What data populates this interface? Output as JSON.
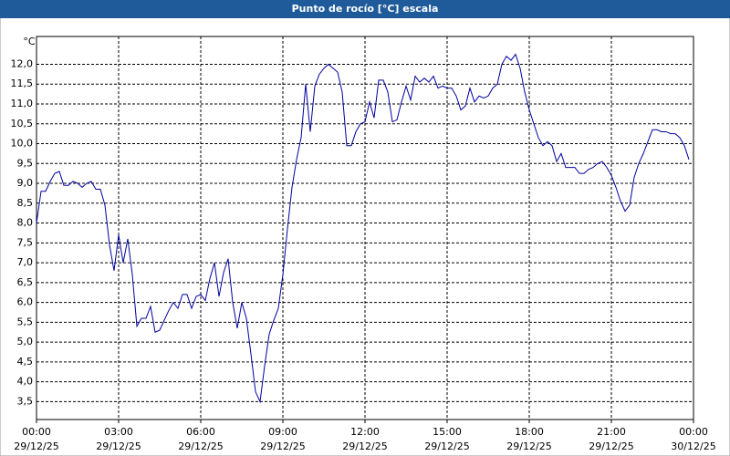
{
  "chart_data": {
    "type": "line",
    "title": "Punto de rocío [°C] escala",
    "y_label": "°C",
    "color": "#0000a0",
    "grid": true,
    "xlim": [
      "29/12/25 00:00",
      "30/12/25 00:00"
    ],
    "xticks": [
      {
        "value": "29/12/25 00:00",
        "label": [
          "00:00",
          "29/12/25"
        ]
      },
      {
        "value": "29/12/25 03:00",
        "label": [
          "03:00",
          "29/12/25"
        ]
      },
      {
        "value": "29/12/25 06:00",
        "label": [
          "06:00",
          "29/12/25"
        ]
      },
      {
        "value": "29/12/25 09:00",
        "label": [
          "09:00",
          "29/12/25"
        ]
      },
      {
        "value": "29/12/25 12:00",
        "label": [
          "12:00",
          "29/12/25"
        ]
      },
      {
        "value": "29/12/25 15:00",
        "label": [
          "15:00",
          "29/12/25"
        ]
      },
      {
        "value": "29/12/25 18:00",
        "label": [
          "18:00",
          "29/12/25"
        ]
      },
      {
        "value": "29/12/25 21:00",
        "label": [
          "21:00",
          "29/12/25"
        ]
      },
      {
        "value": "30/12/25 00:00",
        "label": [
          "00:00",
          "30/12/25"
        ]
      }
    ],
    "ylim": [
      3.05,
      12.7
    ],
    "yticks": [
      {
        "value": 3.5,
        "label": "3,5"
      },
      {
        "value": 4,
        "label": "4,0"
      },
      {
        "value": 4.5,
        "label": "4,5"
      },
      {
        "value": 5,
        "label": "5,0"
      },
      {
        "value": 5.5,
        "label": "5,5"
      },
      {
        "value": 6,
        "label": "6,0"
      },
      {
        "value": 6.5,
        "label": "6,5"
      },
      {
        "value": 7,
        "label": "7,0"
      },
      {
        "value": 7.5,
        "label": "7,5"
      },
      {
        "value": 8,
        "label": "8,0"
      },
      {
        "value": 8.5,
        "label": "8,5"
      },
      {
        "value": 9,
        "label": "9,0"
      },
      {
        "value": 9.5,
        "label": "9,5"
      },
      {
        "value": 10,
        "label": "10,0"
      },
      {
        "value": 10.5,
        "label": "10,5"
      },
      {
        "value": 11,
        "label": "11,0"
      },
      {
        "value": 11.5,
        "label": "11,5"
      },
      {
        "value": 12,
        "label": "12,0"
      }
    ],
    "x": [
      "29/12/25 00:00",
      "29/12/25 00:10",
      "29/12/25 00:20",
      "29/12/25 00:30",
      "29/12/25 00:40",
      "29/12/25 00:50",
      "29/12/25 01:00",
      "29/12/25 01:10",
      "29/12/25 01:20",
      "29/12/25 01:30",
      "29/12/25 01:40",
      "29/12/25 01:50",
      "29/12/25 02:00",
      "29/12/25 02:10",
      "29/12/25 02:20",
      "29/12/25 02:30",
      "29/12/25 02:40",
      "29/12/25 02:50",
      "29/12/25 03:00",
      "29/12/25 03:10",
      "29/12/25 03:20",
      "29/12/25 03:30",
      "29/12/25 03:40",
      "29/12/25 03:50",
      "29/12/25 04:00",
      "29/12/25 04:10",
      "29/12/25 04:20",
      "29/12/25 04:30",
      "29/12/25 04:40",
      "29/12/25 04:50",
      "29/12/25 05:00",
      "29/12/25 05:10",
      "29/12/25 05:20",
      "29/12/25 05:30",
      "29/12/25 05:40",
      "29/12/25 05:50",
      "29/12/25 06:00",
      "29/12/25 06:10",
      "29/12/25 06:20",
      "29/12/25 06:30",
      "29/12/25 06:40",
      "29/12/25 06:50",
      "29/12/25 07:00",
      "29/12/25 07:10",
      "29/12/25 07:20",
      "29/12/25 07:30",
      "29/12/25 07:40",
      "29/12/25 07:50",
      "29/12/25 08:00",
      "29/12/25 08:10",
      "29/12/25 08:20",
      "29/12/25 08:30",
      "29/12/25 08:40",
      "29/12/25 08:50",
      "29/12/25 09:00",
      "29/12/25 09:10",
      "29/12/25 09:20",
      "29/12/25 09:30",
      "29/12/25 09:40",
      "29/12/25 09:50",
      "29/12/25 10:00",
      "29/12/25 10:10",
      "29/12/25 10:20",
      "29/12/25 10:30",
      "29/12/25 10:40",
      "29/12/25 10:50",
      "29/12/25 11:00",
      "29/12/25 11:10",
      "29/12/25 11:20",
      "29/12/25 11:30",
      "29/12/25 11:40",
      "29/12/25 11:50",
      "29/12/25 12:00",
      "29/12/25 12:10",
      "29/12/25 12:20",
      "29/12/25 12:30",
      "29/12/25 12:40",
      "29/12/25 12:50",
      "29/12/25 13:00",
      "29/12/25 13:10",
      "29/12/25 13:20",
      "29/12/25 13:30",
      "29/12/25 13:40",
      "29/12/25 13:50",
      "29/12/25 14:00",
      "29/12/25 14:10",
      "29/12/25 14:20",
      "29/12/25 14:30",
      "29/12/25 14:40",
      "29/12/25 14:50",
      "29/12/25 15:00",
      "29/12/25 15:10",
      "29/12/25 15:20",
      "29/12/25 15:30",
      "29/12/25 15:40",
      "29/12/25 15:50",
      "29/12/25 16:00",
      "29/12/25 16:10",
      "29/12/25 16:20",
      "29/12/25 16:30",
      "29/12/25 16:40",
      "29/12/25 16:50",
      "29/12/25 17:00",
      "29/12/25 17:10",
      "29/12/25 17:20",
      "29/12/25 17:30",
      "29/12/25 17:40",
      "29/12/25 17:50",
      "29/12/25 18:00",
      "29/12/25 18:10",
      "29/12/25 18:20",
      "29/12/25 18:30",
      "29/12/25 18:40",
      "29/12/25 18:50",
      "29/12/25 19:00",
      "29/12/25 19:10",
      "29/12/25 19:20",
      "29/12/25 19:30",
      "29/12/25 19:40",
      "29/12/25 19:50",
      "29/12/25 20:00",
      "29/12/25 20:10",
      "29/12/25 20:20",
      "29/12/25 20:30",
      "29/12/25 20:40",
      "29/12/25 20:50",
      "29/12/25 21:00",
      "29/12/25 21:10",
      "29/12/25 21:20",
      "29/12/25 21:30",
      "29/12/25 21:40",
      "29/12/25 21:50",
      "29/12/25 22:00",
      "29/12/25 22:10",
      "29/12/25 22:20",
      "29/12/25 22:30",
      "29/12/25 22:40",
      "29/12/25 22:50",
      "29/12/25 23:00",
      "29/12/25 23:10",
      "29/12/25 23:20",
      "29/12/25 23:30",
      "29/12/25 23:40",
      "29/12/25 23:50"
    ],
    "values": [
      8.0,
      8.8,
      8.8,
      9.05,
      9.25,
      9.3,
      8.95,
      8.95,
      9.05,
      9.0,
      8.9,
      9.0,
      9.05,
      8.85,
      8.85,
      8.45,
      7.45,
      6.8,
      7.7,
      7.0,
      7.6,
      6.7,
      5.4,
      5.6,
      5.6,
      5.9,
      5.25,
      5.3,
      5.55,
      5.8,
      6.0,
      5.85,
      6.2,
      6.2,
      5.85,
      6.15,
      6.2,
      6.05,
      6.6,
      7.0,
      6.15,
      6.75,
      7.1,
      6.0,
      5.35,
      6.0,
      5.6,
      4.7,
      3.75,
      3.5,
      4.4,
      5.2,
      5.55,
      5.85,
      6.7,
      7.85,
      8.9,
      9.6,
      10.15,
      11.5,
      10.3,
      11.45,
      11.75,
      11.9,
      12.0,
      11.9,
      11.8,
      11.3,
      9.95,
      9.95,
      10.3,
      10.5,
      10.55,
      11.05,
      10.65,
      11.6,
      11.6,
      11.3,
      10.55,
      10.6,
      11.05,
      11.45,
      11.1,
      11.7,
      11.55,
      11.65,
      11.55,
      11.7,
      11.4,
      11.45,
      11.4,
      11.4,
      11.2,
      10.85,
      10.95,
      11.4,
      11.05,
      11.2,
      11.15,
      11.2,
      11.4,
      11.5,
      12.0,
      12.2,
      12.1,
      12.25,
      11.9,
      11.3,
      10.85,
      10.5,
      10.15,
      9.95,
      10.05,
      9.95,
      9.55,
      9.75,
      9.4,
      9.4,
      9.4,
      9.25,
      9.25,
      9.35,
      9.4,
      9.5,
      9.55,
      9.4,
      9.2,
      8.9,
      8.55,
      8.3,
      8.45,
      9.15,
      9.5,
      9.75,
      10.05,
      10.35,
      10.35,
      10.3,
      10.3,
      10.25,
      10.25,
      10.15,
      9.95,
      9.6
    ]
  }
}
